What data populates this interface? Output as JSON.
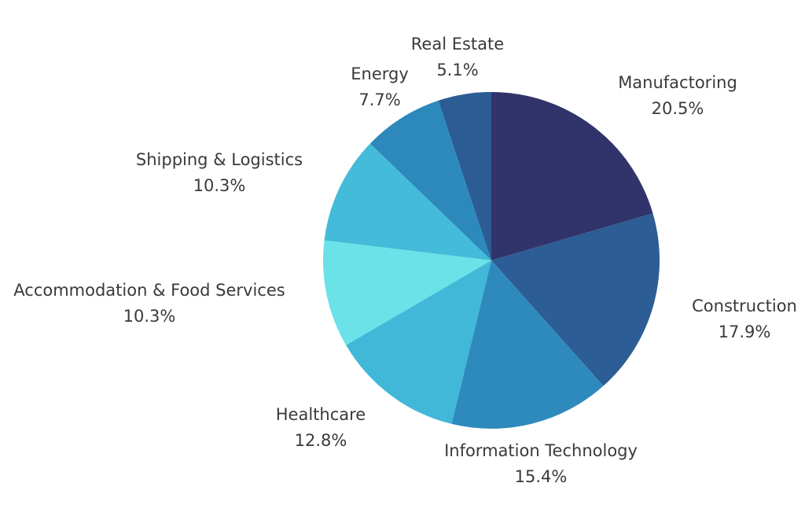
{
  "chart_data": {
    "type": "pie",
    "title": "",
    "start_angle_deg": 0,
    "direction": "clockwise",
    "slices": [
      {
        "label": "Manufactoring",
        "value": 20.5,
        "value_label": "20.5%",
        "color": "#31336b"
      },
      {
        "label": "Construction",
        "value": 17.9,
        "value_label": "17.9%",
        "color": "#2c5d94"
      },
      {
        "label": "Information Technology",
        "value": 15.4,
        "value_label": "15.4%",
        "color": "#2e8abc"
      },
      {
        "label": "Healthcare",
        "value": 12.8,
        "value_label": "12.8%",
        "color": "#41b8d8"
      },
      {
        "label": "Accommodation & Food Services",
        "value": 10.3,
        "value_label": "10.3%",
        "color": "#6ae2e8"
      },
      {
        "label": "Shipping & Logistics",
        "value": 10.3,
        "value_label": "10.3%",
        "color": "#43bbd9"
      },
      {
        "label": "Energy",
        "value": 7.7,
        "value_label": "7.7%",
        "color": "#2d88bb"
      },
      {
        "label": "Real Estate",
        "value": 5.1,
        "value_label": "5.1%",
        "color": "#2b5c94"
      }
    ]
  }
}
